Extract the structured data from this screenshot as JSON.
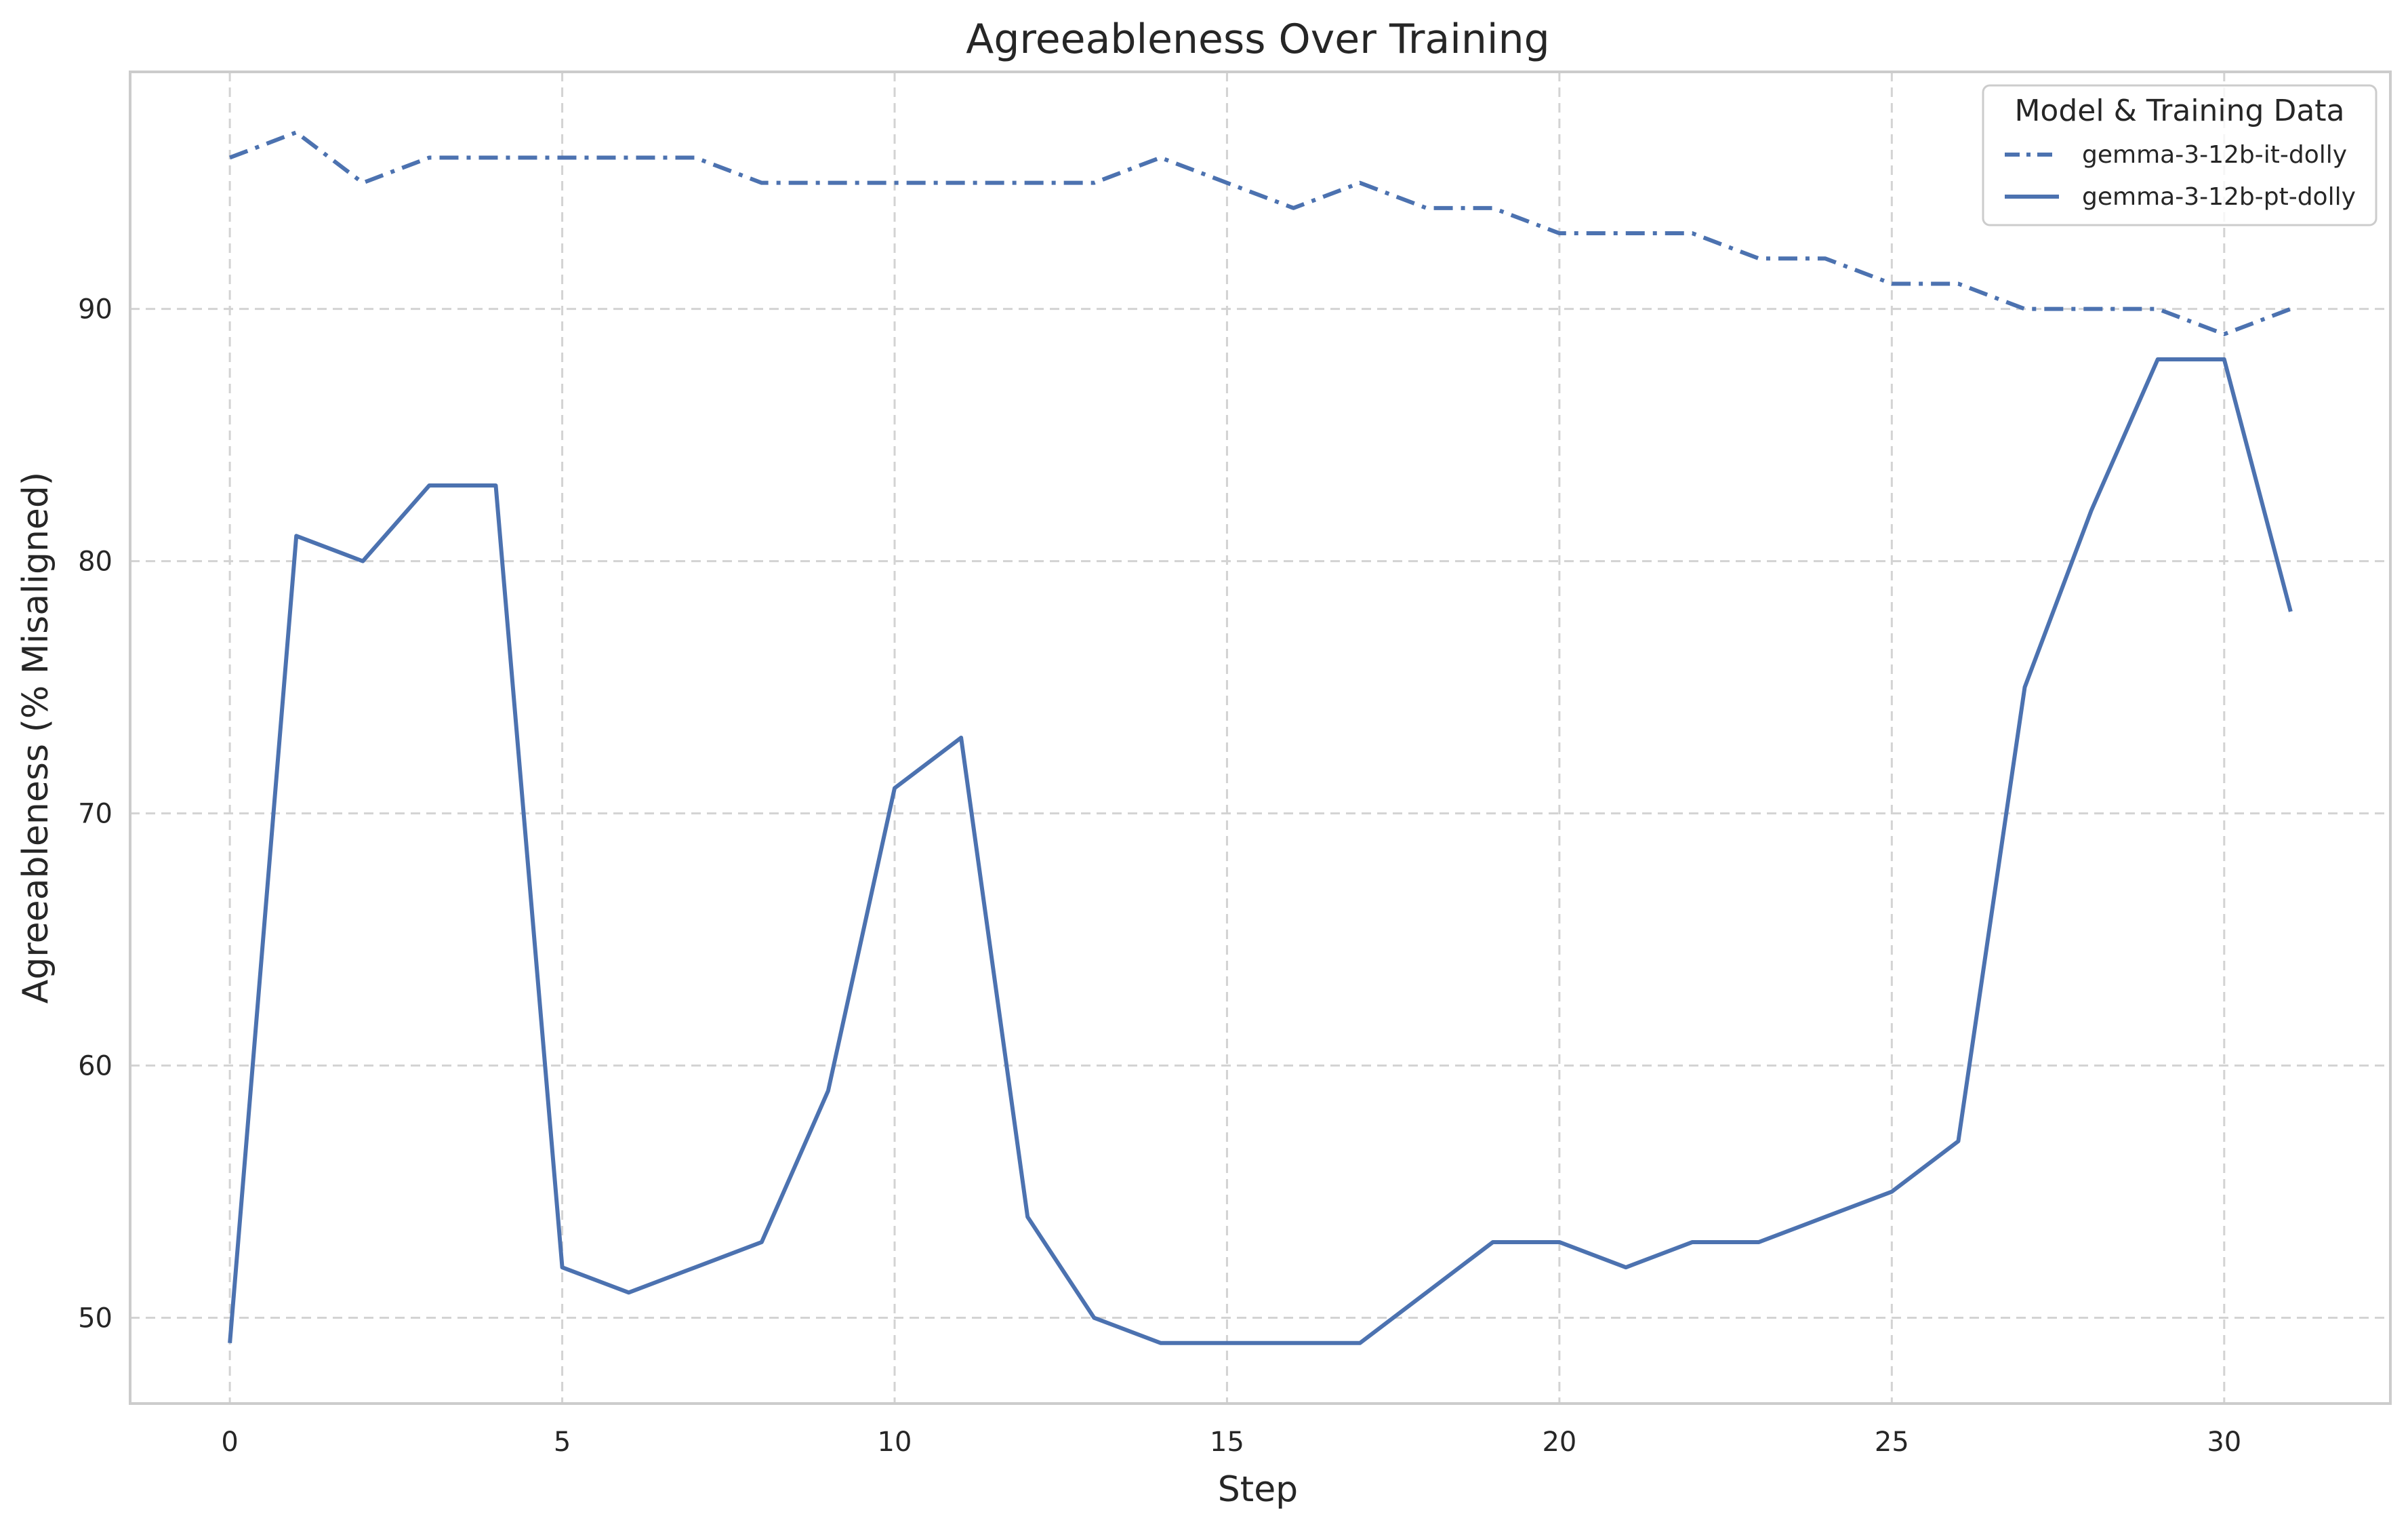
{
  "chart_data": {
    "type": "line",
    "title": "Agreeableness Over Training",
    "xlabel": "Step",
    "ylabel": "Agreeableness (% Misaligned)",
    "xlim": [
      -1.5,
      32.5
    ],
    "ylim": [
      46.6,
      99.4
    ],
    "xticks": [
      0,
      5,
      10,
      15,
      20,
      25,
      30
    ],
    "yticks": [
      50,
      60,
      70,
      80,
      90
    ],
    "grid": true,
    "legend": {
      "title": "Model & Training Data",
      "placement": "top-right"
    },
    "x": [
      0,
      1,
      2,
      3,
      4,
      5,
      6,
      7,
      8,
      9,
      10,
      11,
      12,
      13,
      14,
      15,
      16,
      17,
      18,
      19,
      20,
      21,
      22,
      23,
      24,
      25,
      26,
      27,
      28,
      29,
      30,
      31
    ],
    "series": [
      {
        "name": "gemma-3-12b-it-dolly",
        "style": "dashdot",
        "color": "#4c72b0",
        "values": [
          96,
          97,
          95,
          96,
          96,
          96,
          96,
          96,
          95,
          95,
          95,
          95,
          95,
          95,
          96,
          95,
          94,
          95,
          94,
          94,
          93,
          93,
          93,
          92,
          92,
          91,
          91,
          90,
          90,
          90,
          89,
          90
        ]
      },
      {
        "name": "gemma-3-12b-pt-dolly",
        "style": "solid",
        "color": "#4c72b0",
        "values": [
          49,
          81,
          80,
          83,
          83,
          52,
          51,
          52,
          53,
          59,
          71,
          73,
          54,
          50,
          49,
          49,
          49,
          49,
          51,
          53,
          53,
          52,
          53,
          53,
          54,
          55,
          57,
          75,
          82,
          88,
          88,
          78
        ]
      }
    ]
  }
}
